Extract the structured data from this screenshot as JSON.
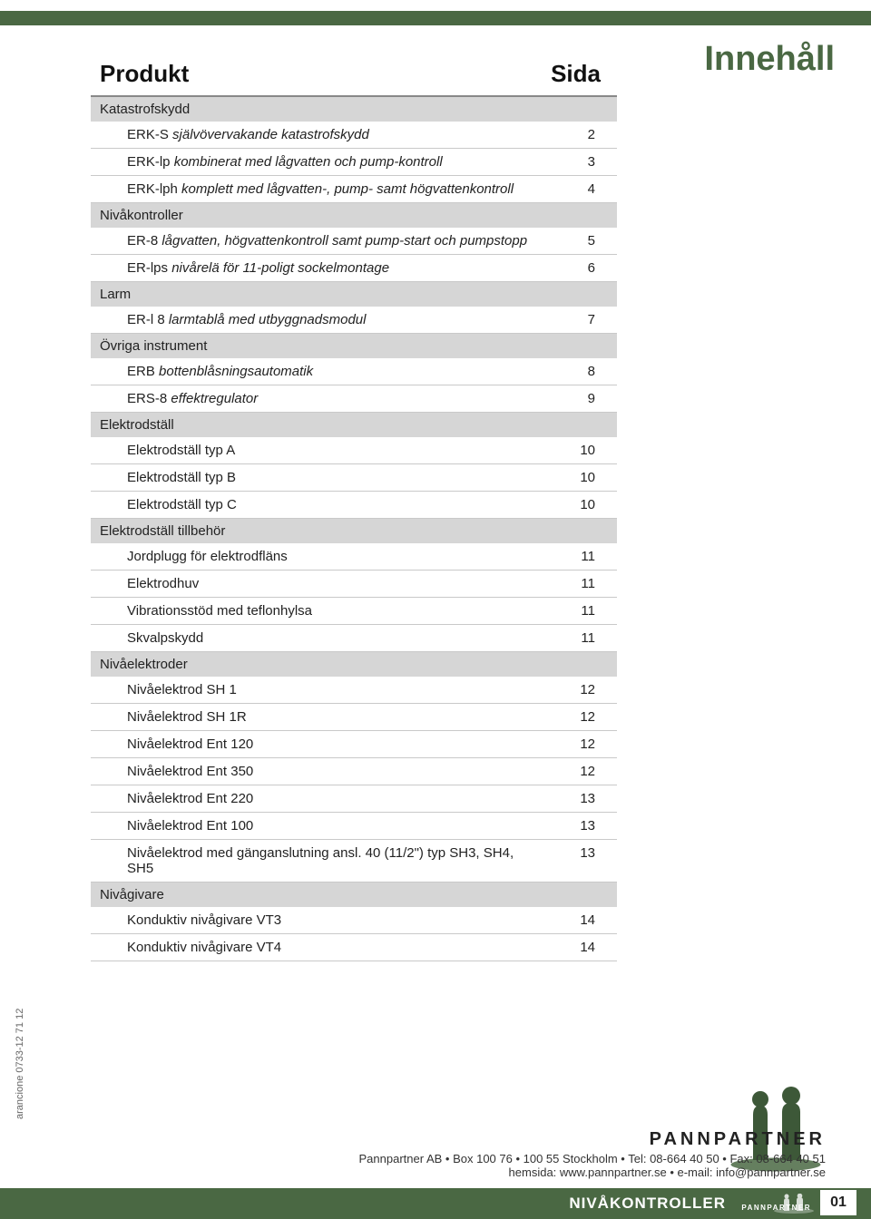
{
  "colors": {
    "brand_green": "#4a6843",
    "section_bg": "#d6d6d6",
    "row_border": "#c9c9c9",
    "text": "#222222"
  },
  "page_title": "Innehåll",
  "table": {
    "header_product": "Produkt",
    "header_page": "Sida",
    "sections": [
      {
        "title": "Katastrofskydd",
        "items": [
          {
            "prefix": "ERK-S",
            "desc": "självövervakande katastrofskydd",
            "page": "2"
          },
          {
            "prefix": "ERK-lp",
            "desc": "kombinerat med lågvatten och pump-kontroll",
            "page": "3"
          },
          {
            "prefix": "ERK-lph",
            "desc": "komplett med lågvatten-, pump- samt högvattenkontroll",
            "page": "4"
          }
        ]
      },
      {
        "title": "Nivåkontroller",
        "items": [
          {
            "prefix": "ER-8",
            "desc": "lågvatten, högvattenkontroll samt pump-start och pumpstopp",
            "page": "5"
          },
          {
            "prefix": "ER-lps",
            "desc": "nivårelä för 11-poligt sockelmontage",
            "page": "6"
          }
        ]
      },
      {
        "title": "Larm",
        "items": [
          {
            "prefix": "ER-l 8",
            "desc": "larmtablå med utbyggnadsmodul",
            "page": "7"
          }
        ]
      },
      {
        "title": "Övriga instrument",
        "items": [
          {
            "prefix": "ERB",
            "desc": "bottenblåsningsautomatik",
            "page": "8"
          },
          {
            "prefix": "ERS-8",
            "desc": "effektregulator",
            "page": "9"
          }
        ]
      },
      {
        "title": "Elektrodställ",
        "items": [
          {
            "prefix": "Elektrodställ typ A",
            "desc": "",
            "page": "10"
          },
          {
            "prefix": "Elektrodställ typ B",
            "desc": "",
            "page": "10"
          },
          {
            "prefix": "Elektrodställ typ C",
            "desc": "",
            "page": "10"
          }
        ]
      },
      {
        "title": "Elektrodställ tillbehör",
        "items": [
          {
            "prefix": "Jordplugg för elektrodfläns",
            "desc": "",
            "page": "11"
          },
          {
            "prefix": "Elektrodhuv",
            "desc": "",
            "page": "11"
          },
          {
            "prefix": "Vibrationsstöd med teflonhylsa",
            "desc": "",
            "page": "11"
          },
          {
            "prefix": "Skvalpskydd",
            "desc": "",
            "page": "11"
          }
        ]
      },
      {
        "title": "Nivåelektroder",
        "items": [
          {
            "prefix": "Nivåelektrod SH 1",
            "desc": "",
            "page": "12"
          },
          {
            "prefix": "Nivåelektrod SH 1R",
            "desc": "",
            "page": "12"
          },
          {
            "prefix": "Nivåelektrod Ent 120",
            "desc": "",
            "page": "12"
          },
          {
            "prefix": "Nivåelektrod Ent 350",
            "desc": "",
            "page": "12"
          },
          {
            "prefix": "Nivåelektrod Ent 220",
            "desc": "",
            "page": "13"
          },
          {
            "prefix": "Nivåelektrod Ent 100",
            "desc": "",
            "page": "13"
          },
          {
            "prefix": "Nivåelektrod med gänganslutning ansl. 40 (11/2\") typ SH3, SH4, SH5",
            "desc": "",
            "page": "13"
          }
        ]
      },
      {
        "title": "Nivågivare",
        "items": [
          {
            "prefix": "Konduktiv nivågivare VT3",
            "desc": "",
            "page": "14"
          },
          {
            "prefix": "Konduktiv nivågivare VT4",
            "desc": "",
            "page": "14"
          }
        ]
      }
    ]
  },
  "footer": {
    "vertical_text": "arancione 0733-12 71 12",
    "brand": "PANNPARTNER",
    "line1": "Pannpartner AB • Box 100 76 • 100 55 Stockholm • Tel: 08-664 40 50 • Fax: 08-664 40 51",
    "line2": "hemsida: www.pannpartner.se • e-mail: info@pannpartner.se",
    "section_label": "NIVÅKONTROLLER",
    "page_number": "01"
  }
}
